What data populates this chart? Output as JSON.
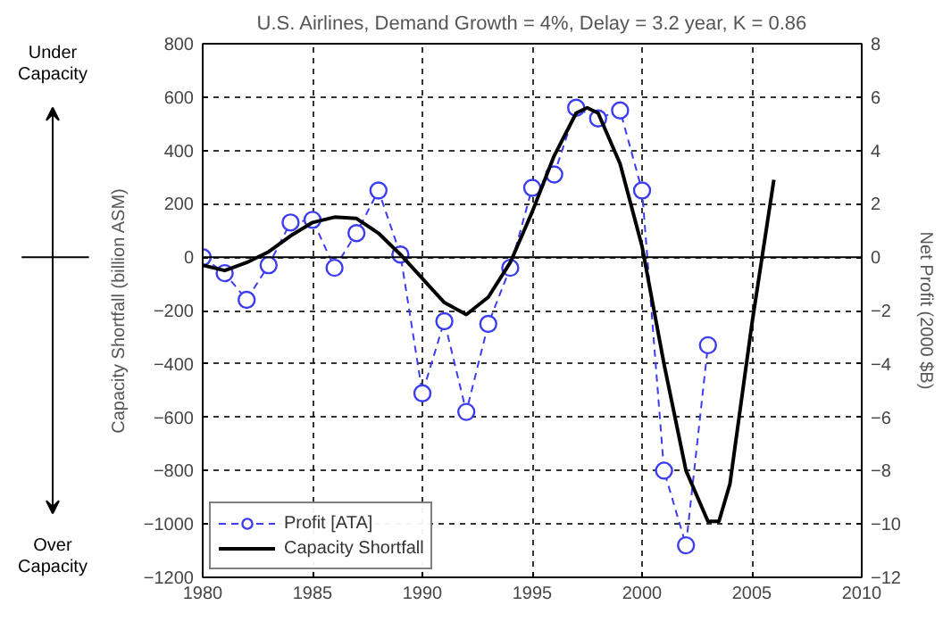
{
  "chart_data": {
    "type": "line",
    "title": "U.S. Airlines, Demand Growth = 4%, Delay = 3.2 year, K = 0.86",
    "ylabel": "Capacity Shortfall (billion ASM)",
    "y2label": "Net Profit (2000 $B)",
    "xlim": [
      1980,
      2010
    ],
    "xticks": [
      1980,
      1985,
      1990,
      1995,
      2000,
      2005,
      2010
    ],
    "ylim": [
      -1200,
      800
    ],
    "yticks": [
      -1200,
      -1000,
      -800,
      -600,
      -400,
      -200,
      0,
      200,
      400,
      600,
      800
    ],
    "y2lim": [
      -12,
      8
    ],
    "y2ticks": [
      -12,
      -10,
      -8,
      -6,
      -4,
      -2,
      0,
      2,
      4,
      6,
      8
    ],
    "grid": true,
    "legend": "bottom left",
    "annotations": [
      "Under Capacity",
      "Over Capacity"
    ],
    "ref_lines": [
      {
        "axis": "y",
        "value": 0,
        "color": "#000000",
        "line_style": "solid"
      }
    ],
    "series": [
      {
        "name": "Profit [ATA]",
        "color": "#3c3cf0",
        "axis": "y2",
        "marker": "circle",
        "line_style": "dashed",
        "x": [
          1980,
          1981,
          1982,
          1983,
          1984,
          1985,
          1986,
          1987,
          1988,
          1989,
          1990,
          1991,
          1992,
          1993,
          1994,
          1995,
          1996,
          1997,
          1998,
          1999,
          2000,
          2001,
          2002,
          2003
        ],
        "values": [
          0.0,
          -0.6,
          -1.6,
          -0.3,
          1.3,
          1.4,
          -0.4,
          0.9,
          2.5,
          0.1,
          -5.1,
          -2.4,
          -5.8,
          -2.5,
          -0.4,
          2.6,
          3.1,
          5.6,
          5.2,
          5.5,
          2.5,
          -8.0,
          -10.8,
          -3.3
        ]
      },
      {
        "name": "Capacity Shortfall",
        "color": "#000000",
        "axis": "y",
        "marker": "none",
        "line_style": "solid",
        "x": [
          1980,
          1981,
          1982,
          1983,
          1984,
          1985,
          1986,
          1987,
          1988,
          1989,
          1990,
          1991,
          1992,
          1993,
          1994,
          1995,
          1996,
          1997,
          1997.5,
          1998,
          1999,
          2000,
          2001,
          2002,
          2003,
          2003.5,
          2004,
          2005,
          2006
        ],
        "values": [
          -30,
          -50,
          -20,
          20,
          80,
          130,
          150,
          145,
          90,
          10,
          -80,
          -170,
          -215,
          -150,
          -20,
          170,
          380,
          540,
          560,
          540,
          350,
          40,
          -400,
          -800,
          -990,
          -990,
          -850,
          -250,
          290
        ]
      }
    ]
  }
}
